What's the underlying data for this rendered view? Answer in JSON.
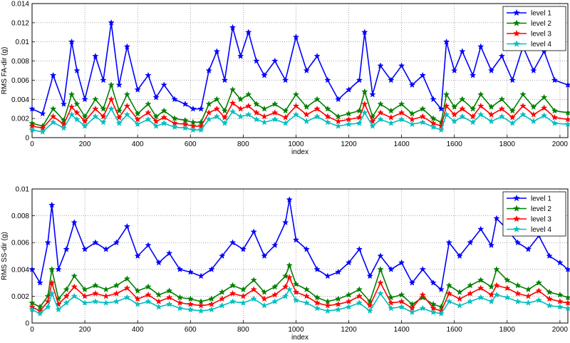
{
  "chart_data": [
    {
      "type": "line",
      "title": "",
      "xlabel": "index",
      "ylabel": "RMS FA-dir (g)",
      "xlim": [
        0,
        2030
      ],
      "ylim": [
        0,
        0.014
      ],
      "xticks": [
        0,
        200,
        400,
        600,
        800,
        1000,
        1200,
        1400,
        1600,
        1800,
        2000
      ],
      "yticks": [
        0,
        0.002,
        0.004,
        0.006,
        0.008,
        0.01,
        0.012,
        0.014
      ],
      "ytick_labels": [
        "0",
        "0.002",
        "0.004",
        "0.006",
        "0.008",
        "0.01",
        "0.012",
        "0.014"
      ],
      "grid": true,
      "legend_position": "top-right",
      "marker": "star",
      "x": [
        0,
        40,
        80,
        120,
        150,
        170,
        200,
        240,
        270,
        300,
        330,
        360,
        400,
        440,
        470,
        500,
        540,
        580,
        610,
        640,
        670,
        700,
        730,
        760,
        790,
        820,
        850,
        880,
        920,
        960,
        1000,
        1040,
        1080,
        1120,
        1160,
        1200,
        1240,
        1260,
        1290,
        1320,
        1360,
        1400,
        1440,
        1480,
        1520,
        1550,
        1570,
        1600,
        1630,
        1670,
        1700,
        1740,
        1780,
        1820,
        1860,
        1900,
        1940,
        1980,
        2030
      ],
      "series": [
        {
          "name": "level 1",
          "color": "#0000ff",
          "values": [
            0.003,
            0.0025,
            0.0065,
            0.0035,
            0.01,
            0.007,
            0.004,
            0.0085,
            0.006,
            0.012,
            0.0055,
            0.0095,
            0.005,
            0.0065,
            0.0042,
            0.0055,
            0.004,
            0.0035,
            0.003,
            0.003,
            0.007,
            0.009,
            0.006,
            0.0115,
            0.0085,
            0.011,
            0.008,
            0.0065,
            0.008,
            0.006,
            0.0105,
            0.007,
            0.0085,
            0.006,
            0.004,
            0.005,
            0.006,
            0.011,
            0.0045,
            0.0075,
            0.006,
            0.0075,
            0.0055,
            0.0065,
            0.004,
            0.003,
            0.01,
            0.007,
            0.009,
            0.0065,
            0.0095,
            0.007,
            0.0085,
            0.006,
            0.0095,
            0.007,
            0.009,
            0.006,
            0.0055
          ]
        },
        {
          "name": "level 2",
          "color": "#008000",
          "values": [
            0.0015,
            0.0012,
            0.003,
            0.0018,
            0.0045,
            0.0035,
            0.0022,
            0.004,
            0.003,
            0.0055,
            0.0028,
            0.0045,
            0.0025,
            0.0035,
            0.0022,
            0.0028,
            0.002,
            0.0018,
            0.0016,
            0.0016,
            0.0035,
            0.004,
            0.0028,
            0.005,
            0.004,
            0.0045,
            0.0035,
            0.003,
            0.0035,
            0.0028,
            0.0045,
            0.0032,
            0.004,
            0.003,
            0.0022,
            0.0025,
            0.0028,
            0.0048,
            0.0022,
            0.0035,
            0.0028,
            0.0035,
            0.0025,
            0.003,
            0.002,
            0.0016,
            0.0045,
            0.0032,
            0.004,
            0.003,
            0.0045,
            0.0032,
            0.004,
            0.0028,
            0.0045,
            0.0032,
            0.0042,
            0.0028,
            0.0026
          ]
        },
        {
          "name": "level 3",
          "color": "#ff0000",
          "values": [
            0.0012,
            0.001,
            0.0022,
            0.0014,
            0.0032,
            0.0026,
            0.0017,
            0.003,
            0.0022,
            0.004,
            0.0021,
            0.0033,
            0.0019,
            0.0026,
            0.0017,
            0.0021,
            0.0015,
            0.0014,
            0.0012,
            0.0012,
            0.0026,
            0.003,
            0.0021,
            0.0036,
            0.003,
            0.0033,
            0.0026,
            0.0022,
            0.0026,
            0.0021,
            0.0033,
            0.0024,
            0.003,
            0.0022,
            0.0017,
            0.0019,
            0.0021,
            0.0035,
            0.0017,
            0.0026,
            0.0021,
            0.0026,
            0.0019,
            0.0022,
            0.0015,
            0.0012,
            0.0033,
            0.0024,
            0.003,
            0.0022,
            0.0033,
            0.0024,
            0.003,
            0.0021,
            0.0033,
            0.0024,
            0.0031,
            0.0021,
            0.0019
          ]
        },
        {
          "name": "level 4",
          "color": "#00bfbf",
          "values": [
            0.0008,
            0.0006,
            0.0016,
            0.001,
            0.0024,
            0.0019,
            0.0012,
            0.0022,
            0.0016,
            0.003,
            0.0015,
            0.0024,
            0.0014,
            0.0019,
            0.0012,
            0.0015,
            0.0011,
            0.001,
            0.0008,
            0.0008,
            0.0019,
            0.0022,
            0.0015,
            0.0027,
            0.0022,
            0.0024,
            0.0019,
            0.0016,
            0.0019,
            0.0015,
            0.0024,
            0.0017,
            0.0022,
            0.0016,
            0.0012,
            0.0014,
            0.0015,
            0.0026,
            0.0012,
            0.0019,
            0.0015,
            0.0019,
            0.0014,
            0.0016,
            0.0011,
            0.0008,
            0.0024,
            0.0017,
            0.0022,
            0.0016,
            0.0024,
            0.0017,
            0.0022,
            0.0015,
            0.0024,
            0.0017,
            0.0023,
            0.0015,
            0.0014
          ]
        }
      ]
    },
    {
      "type": "line",
      "title": "",
      "xlabel": "index",
      "ylabel": "RMS SS-dir (g)",
      "xlim": [
        0,
        2030
      ],
      "ylim": [
        0,
        0.01
      ],
      "xticks": [
        0,
        200,
        400,
        600,
        800,
        1000,
        1200,
        1400,
        1600,
        1800,
        2000
      ],
      "yticks": [
        0,
        0.002,
        0.004,
        0.006,
        0.008,
        0.01
      ],
      "ytick_labels": [
        "0",
        "0.002",
        "0.004",
        "0.006",
        "0.008",
        "0.01"
      ],
      "grid": true,
      "legend_position": "top-right",
      "marker": "star",
      "x": [
        0,
        30,
        60,
        75,
        100,
        130,
        160,
        200,
        240,
        280,
        320,
        360,
        400,
        440,
        480,
        520,
        560,
        600,
        640,
        680,
        720,
        760,
        800,
        840,
        880,
        920,
        960,
        975,
        1000,
        1040,
        1080,
        1120,
        1160,
        1200,
        1240,
        1280,
        1320,
        1360,
        1400,
        1440,
        1480,
        1520,
        1550,
        1580,
        1620,
        1660,
        1700,
        1740,
        1760,
        1800,
        1840,
        1880,
        1920,
        1960,
        2000,
        2030
      ],
      "series": [
        {
          "name": "level 1",
          "color": "#0000ff",
          "values": [
            0.004,
            0.003,
            0.006,
            0.0088,
            0.004,
            0.0055,
            0.0075,
            0.0055,
            0.006,
            0.0055,
            0.006,
            0.0072,
            0.005,
            0.0058,
            0.0045,
            0.0052,
            0.004,
            0.0038,
            0.0035,
            0.004,
            0.005,
            0.006,
            0.0055,
            0.0068,
            0.005,
            0.0058,
            0.0075,
            0.0092,
            0.0062,
            0.0055,
            0.004,
            0.0035,
            0.0038,
            0.0045,
            0.0055,
            0.0035,
            0.005,
            0.004,
            0.0045,
            0.003,
            0.004,
            0.003,
            0.0025,
            0.006,
            0.005,
            0.006,
            0.007,
            0.0058,
            0.0078,
            0.007,
            0.006,
            0.0055,
            0.0065,
            0.005,
            0.0045,
            0.004
          ]
        },
        {
          "name": "level 2",
          "color": "#008000",
          "values": [
            0.0015,
            0.0012,
            0.002,
            0.004,
            0.0018,
            0.0025,
            0.0035,
            0.0025,
            0.0028,
            0.0025,
            0.0028,
            0.0033,
            0.0024,
            0.0027,
            0.0021,
            0.0024,
            0.0019,
            0.0018,
            0.0016,
            0.0018,
            0.0023,
            0.0028,
            0.0025,
            0.0032,
            0.0023,
            0.0027,
            0.0035,
            0.0043,
            0.0029,
            0.0025,
            0.0019,
            0.0016,
            0.0018,
            0.0021,
            0.0025,
            0.0016,
            0.004,
            0.0019,
            0.0021,
            0.0014,
            0.0019,
            0.0014,
            0.0012,
            0.0028,
            0.0023,
            0.0028,
            0.0032,
            0.0027,
            0.004,
            0.0032,
            0.0028,
            0.0025,
            0.003,
            0.0023,
            0.0021,
            0.0019
          ]
        },
        {
          "name": "level 3",
          "color": "#ff0000",
          "values": [
            0.0012,
            0.0009,
            0.0016,
            0.003,
            0.0014,
            0.002,
            0.0027,
            0.002,
            0.0022,
            0.002,
            0.0022,
            0.0026,
            0.0018,
            0.0021,
            0.0016,
            0.0019,
            0.0015,
            0.0014,
            0.0013,
            0.0014,
            0.0018,
            0.0022,
            0.002,
            0.0025,
            0.0018,
            0.0021,
            0.0027,
            0.0034,
            0.0023,
            0.002,
            0.0015,
            0.0013,
            0.0014,
            0.0016,
            0.002,
            0.0013,
            0.003,
            0.0015,
            0.0016,
            0.0011,
            0.0021,
            0.0011,
            0.0009,
            0.0022,
            0.0018,
            0.0022,
            0.0026,
            0.0021,
            0.0028,
            0.0026,
            0.0022,
            0.002,
            0.0024,
            0.0018,
            0.0016,
            0.0015
          ]
        },
        {
          "name": "level 4",
          "color": "#00bfbf",
          "values": [
            0.001,
            0.0007,
            0.0012,
            0.0022,
            0.001,
            0.0015,
            0.002,
            0.0015,
            0.0016,
            0.0015,
            0.0016,
            0.0019,
            0.0014,
            0.0016,
            0.0012,
            0.0014,
            0.0011,
            0.001,
            0.0009,
            0.001,
            0.0013,
            0.0016,
            0.0015,
            0.0018,
            0.0013,
            0.0016,
            0.002,
            0.0025,
            0.0017,
            0.0015,
            0.0011,
            0.0009,
            0.001,
            0.0012,
            0.0015,
            0.0009,
            0.0022,
            0.0011,
            0.0012,
            0.0008,
            0.0011,
            0.0008,
            0.0007,
            0.0016,
            0.0013,
            0.0016,
            0.0019,
            0.0016,
            0.0021,
            0.0019,
            0.0016,
            0.0015,
            0.0017,
            0.0013,
            0.0012,
            0.0011
          ]
        }
      ]
    }
  ]
}
